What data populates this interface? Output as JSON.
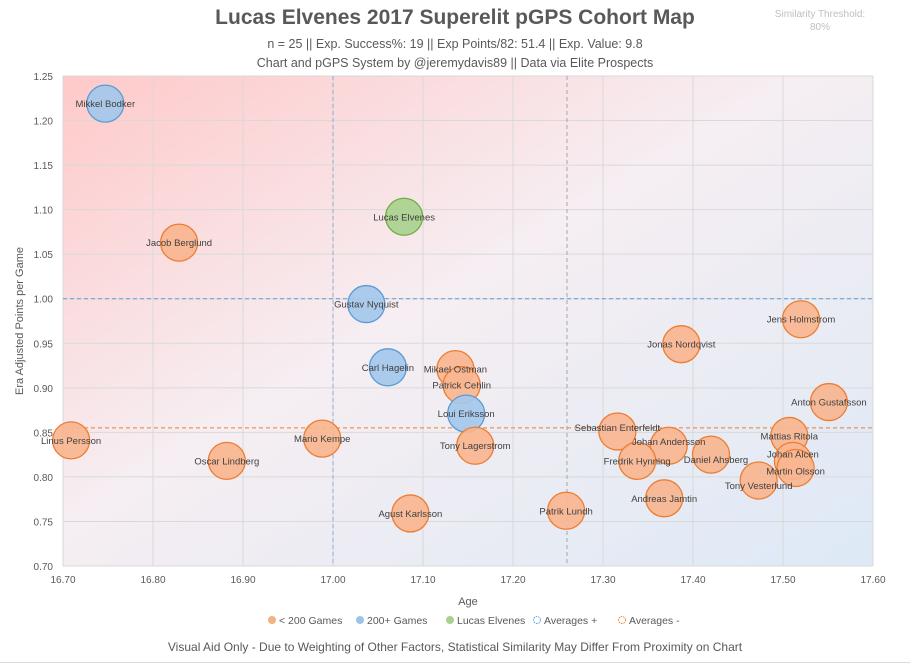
{
  "chart_data": {
    "type": "scatter",
    "title": "Lucas Elvenes 2017 Superelit pGPS Cohort Map",
    "subtitle": "n = 25 || Exp. Success%: 19 || Exp Points/82: 51.4 || Exp. Value: 9.8",
    "credit": "Chart and pGPS System by @jeremydavis89 || Data via Elite Prospects",
    "threshold_label": "Similarity Threshold:",
    "threshold_value": "80%",
    "xlabel": "Age",
    "ylabel": "Era Adjusted Points per Game",
    "xlim": [
      16.7,
      17.6
    ],
    "ylim": [
      0.7,
      1.25
    ],
    "xticks": [
      "16.70",
      "16.80",
      "16.90",
      "17.00",
      "17.10",
      "17.20",
      "17.30",
      "17.40",
      "17.50",
      "17.60"
    ],
    "yticks": [
      "0.70",
      "0.75",
      "0.80",
      "0.85",
      "0.90",
      "0.95",
      "1.00",
      "1.05",
      "1.10",
      "1.15",
      "1.20",
      "1.25"
    ],
    "grid": true,
    "legend_position": "bottom",
    "legend": [
      {
        "label": "< 200 Games",
        "color": "#f4b183",
        "style": "filled"
      },
      {
        "label": "200+ Games",
        "color": "#9dc3e6",
        "style": "filled"
      },
      {
        "label": "Lucas Elvenes",
        "color": "#a9d18e",
        "style": "filled"
      },
      {
        "label": "Averages +",
        "color": "#5b9bd5",
        "style": "dashed"
      },
      {
        "label": "Averages -",
        "color": "#ed7d31",
        "style": "dashed"
      }
    ],
    "averages": {
      "plus": {
        "x": 17.0,
        "y": 1.0
      },
      "minus": {
        "x": 17.26,
        "y": 0.855
      }
    },
    "points": [
      {
        "name": "Mikkel Bodker",
        "x": 16.747,
        "y": 1.219,
        "group": "200+"
      },
      {
        "name": "Jacob Berglund",
        "x": 16.829,
        "y": 1.063,
        "group": "<200"
      },
      {
        "name": "Lucas Elvenes",
        "x": 17.079,
        "y": 1.092,
        "group": "subject"
      },
      {
        "name": "Gustav Nyquist",
        "x": 17.037,
        "y": 0.994,
        "group": "200+"
      },
      {
        "name": "Carl Hagelin",
        "x": 17.061,
        "y": 0.923,
        "group": "200+"
      },
      {
        "name": "Mikael Ostman",
        "x": 17.136,
        "y": 0.921,
        "group": "<200"
      },
      {
        "name": "Patrick Cehlin",
        "x": 17.143,
        "y": 0.903,
        "group": "<200"
      },
      {
        "name": "Loui Eriksson",
        "x": 17.148,
        "y": 0.871,
        "group": "200+"
      },
      {
        "name": "Tony Lagerstrom",
        "x": 17.158,
        "y": 0.835,
        "group": "<200"
      },
      {
        "name": "Linus Persson",
        "x": 16.709,
        "y": 0.841,
        "group": "<200"
      },
      {
        "name": "Oscar Lindberg",
        "x": 16.882,
        "y": 0.818,
        "group": "<200"
      },
      {
        "name": "Mario Kempe",
        "x": 16.988,
        "y": 0.843,
        "group": "<200"
      },
      {
        "name": "Agust Karlsson",
        "x": 17.086,
        "y": 0.759,
        "group": "<200"
      },
      {
        "name": "Patrik Lundh",
        "x": 17.259,
        "y": 0.762,
        "group": "<200"
      },
      {
        "name": "Sebastian Enterfeldt",
        "x": 17.316,
        "y": 0.851,
        "group": "<200"
      },
      {
        "name": "Johan Andersson",
        "x": 17.373,
        "y": 0.835,
        "group": "<200"
      },
      {
        "name": "Fredrik Hynning",
        "x": 17.338,
        "y": 0.818,
        "group": "<200"
      },
      {
        "name": "Daniel Ahsberg",
        "x": 17.42,
        "y": 0.825,
        "group": "<200"
      },
      {
        "name": "Andreas Jamtin",
        "x": 17.368,
        "y": 0.776,
        "group": "<200"
      },
      {
        "name": "Tony Vesterlund",
        "x": 17.473,
        "y": 0.796,
        "group": "<200"
      },
      {
        "name": "Mattias Ritola",
        "x": 17.507,
        "y": 0.846,
        "group": "<200"
      },
      {
        "name": "Johan Alcen",
        "x": 17.511,
        "y": 0.818,
        "group": "<200"
      },
      {
        "name": "Martin Olsson",
        "x": 17.514,
        "y": 0.81,
        "group": "<200"
      },
      {
        "name": "Anton Gustafsson",
        "x": 17.551,
        "y": 0.884,
        "group": "<200"
      },
      {
        "name": "Jens Holmstrom",
        "x": 17.52,
        "y": 0.977,
        "group": "<200"
      },
      {
        "name": "Jonas Nordqvist",
        "x": 17.387,
        "y": 0.949,
        "group": "<200"
      }
    ],
    "footnote": "Visual Aid Only - Due to Weighting of Other Factors, Statistical Similarity May Differ From Proximity on Chart"
  }
}
